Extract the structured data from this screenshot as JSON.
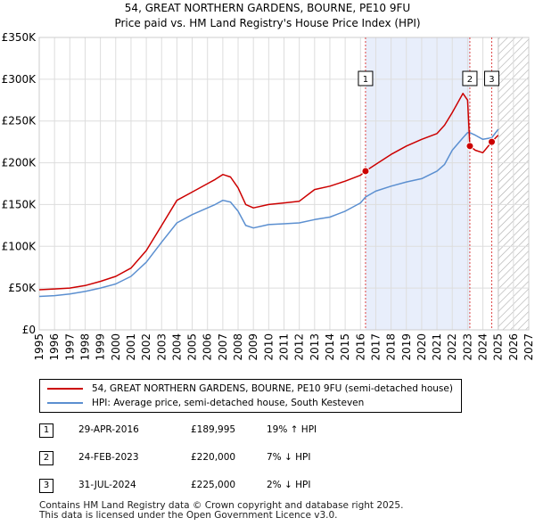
{
  "titles": {
    "line1": "54, GREAT NORTHERN GARDENS, BOURNE, PE10 9FU",
    "line2": "Price paid vs. HM Land Registry's House Price Index (HPI)"
  },
  "colors": {
    "property": "#cc0000",
    "hpi": "#5b8fd0",
    "band": "#e8eefb",
    "hatch": "#999999",
    "grid": "#dddddd"
  },
  "chart_data": {
    "type": "line",
    "title": "54, GREAT NORTHERN GARDENS, BOURNE, PE10 9FU",
    "subtitle": "Price paid vs. HM Land Registry's House Price Index (HPI)",
    "xlabel": "",
    "ylabel": "",
    "xlim": [
      1995,
      2027
    ],
    "ylim": [
      0,
      350000
    ],
    "grid": true,
    "x_ticks": [
      1995,
      1996,
      1997,
      1998,
      1999,
      2000,
      2001,
      2002,
      2003,
      2004,
      2005,
      2006,
      2007,
      2008,
      2009,
      2010,
      2011,
      2012,
      2013,
      2014,
      2015,
      2016,
      2017,
      2018,
      2019,
      2020,
      2021,
      2022,
      2023,
      2024,
      2025,
      2026,
      2027
    ],
    "y_ticks": [
      {
        "value": 0,
        "label": "£0"
      },
      {
        "value": 50000,
        "label": "£50K"
      },
      {
        "value": 100000,
        "label": "£100K"
      },
      {
        "value": 150000,
        "label": "£150K"
      },
      {
        "value": 200000,
        "label": "£200K"
      },
      {
        "value": 250000,
        "label": "£250K"
      },
      {
        "value": 300000,
        "label": "£300K"
      },
      {
        "value": 350000,
        "label": "£350K"
      }
    ],
    "shaded_band": {
      "from": 2016.33,
      "to": 2023.15
    },
    "forecast_from": 2025.0,
    "series": [
      {
        "name": "54, GREAT NORTHERN GARDENS, BOURNE, PE10 9FU (semi-detached house)",
        "color": "#cc0000",
        "points": [
          [
            1995,
            48000
          ],
          [
            1996,
            49000
          ],
          [
            1997,
            50000
          ],
          [
            1998,
            53000
          ],
          [
            1999,
            58000
          ],
          [
            2000,
            64000
          ],
          [
            2001,
            74000
          ],
          [
            2002,
            95000
          ],
          [
            2003,
            125000
          ],
          [
            2004,
            155000
          ],
          [
            2005,
            165000
          ],
          [
            2006,
            175000
          ],
          [
            2006.5,
            180000
          ],
          [
            2007,
            186000
          ],
          [
            2007.5,
            183000
          ],
          [
            2008,
            170000
          ],
          [
            2008.5,
            150000
          ],
          [
            2009,
            146000
          ],
          [
            2010,
            150000
          ],
          [
            2011,
            152000
          ],
          [
            2012,
            154000
          ],
          [
            2013,
            168000
          ],
          [
            2014,
            172000
          ],
          [
            2015,
            178000
          ],
          [
            2016,
            185000
          ],
          [
            2016.33,
            189995
          ],
          [
            2017,
            198000
          ],
          [
            2018,
            210000
          ],
          [
            2019,
            220000
          ],
          [
            2020,
            228000
          ],
          [
            2021,
            235000
          ],
          [
            2021.5,
            245000
          ],
          [
            2022,
            260000
          ],
          [
            2022.7,
            283000
          ],
          [
            2023.0,
            275000
          ],
          [
            2023.15,
            220000
          ],
          [
            2023.5,
            215000
          ],
          [
            2024,
            212000
          ],
          [
            2024.58,
            225000
          ],
          [
            2025,
            233000
          ]
        ]
      },
      {
        "name": "HPI: Average price, semi-detached house, South Kesteven",
        "color": "#5b8fd0",
        "points": [
          [
            1995,
            40000
          ],
          [
            1996,
            41000
          ],
          [
            1997,
            43000
          ],
          [
            1998,
            46000
          ],
          [
            1999,
            50000
          ],
          [
            2000,
            55000
          ],
          [
            2001,
            64000
          ],
          [
            2002,
            81000
          ],
          [
            2003,
            105000
          ],
          [
            2004,
            128000
          ],
          [
            2005,
            138000
          ],
          [
            2006,
            146000
          ],
          [
            2006.5,
            150000
          ],
          [
            2007,
            155000
          ],
          [
            2007.5,
            153000
          ],
          [
            2008,
            142000
          ],
          [
            2008.5,
            125000
          ],
          [
            2009,
            122000
          ],
          [
            2010,
            126000
          ],
          [
            2011,
            127000
          ],
          [
            2012,
            128000
          ],
          [
            2013,
            132000
          ],
          [
            2014,
            135000
          ],
          [
            2015,
            142000
          ],
          [
            2016,
            152000
          ],
          [
            2016.33,
            159000
          ],
          [
            2017,
            166000
          ],
          [
            2018,
            172000
          ],
          [
            2019,
            177000
          ],
          [
            2020,
            181000
          ],
          [
            2021,
            190000
          ],
          [
            2021.5,
            198000
          ],
          [
            2022,
            215000
          ],
          [
            2022.7,
            230000
          ],
          [
            2023.0,
            236000
          ],
          [
            2023.15,
            236000
          ],
          [
            2023.5,
            233000
          ],
          [
            2024,
            228000
          ],
          [
            2024.58,
            230000
          ],
          [
            2025,
            240000
          ]
        ]
      }
    ],
    "sale_points": [
      {
        "label": "1",
        "x": 2016.33,
        "y": 189995
      },
      {
        "label": "2",
        "x": 2023.15,
        "y": 220000
      },
      {
        "label": "3",
        "x": 2024.58,
        "y": 225000
      }
    ]
  },
  "legend": {
    "property_label": "54, GREAT NORTHERN GARDENS, BOURNE, PE10 9FU (semi-detached house)",
    "hpi_label": "HPI: Average price, semi-detached house, South Kesteven"
  },
  "transactions": [
    {
      "num": "1",
      "date": "29-APR-2016",
      "price": "£189,995",
      "hpi": "19% ↑ HPI"
    },
    {
      "num": "2",
      "date": "24-FEB-2023",
      "price": "£220,000",
      "hpi": "7% ↓ HPI"
    },
    {
      "num": "3",
      "date": "31-JUL-2024",
      "price": "£225,000",
      "hpi": "2% ↓ HPI"
    }
  ],
  "footer": {
    "line1": "Contains HM Land Registry data © Crown copyright and database right 2025.",
    "line2": "This data is licensed under the Open Government Licence v3.0."
  }
}
